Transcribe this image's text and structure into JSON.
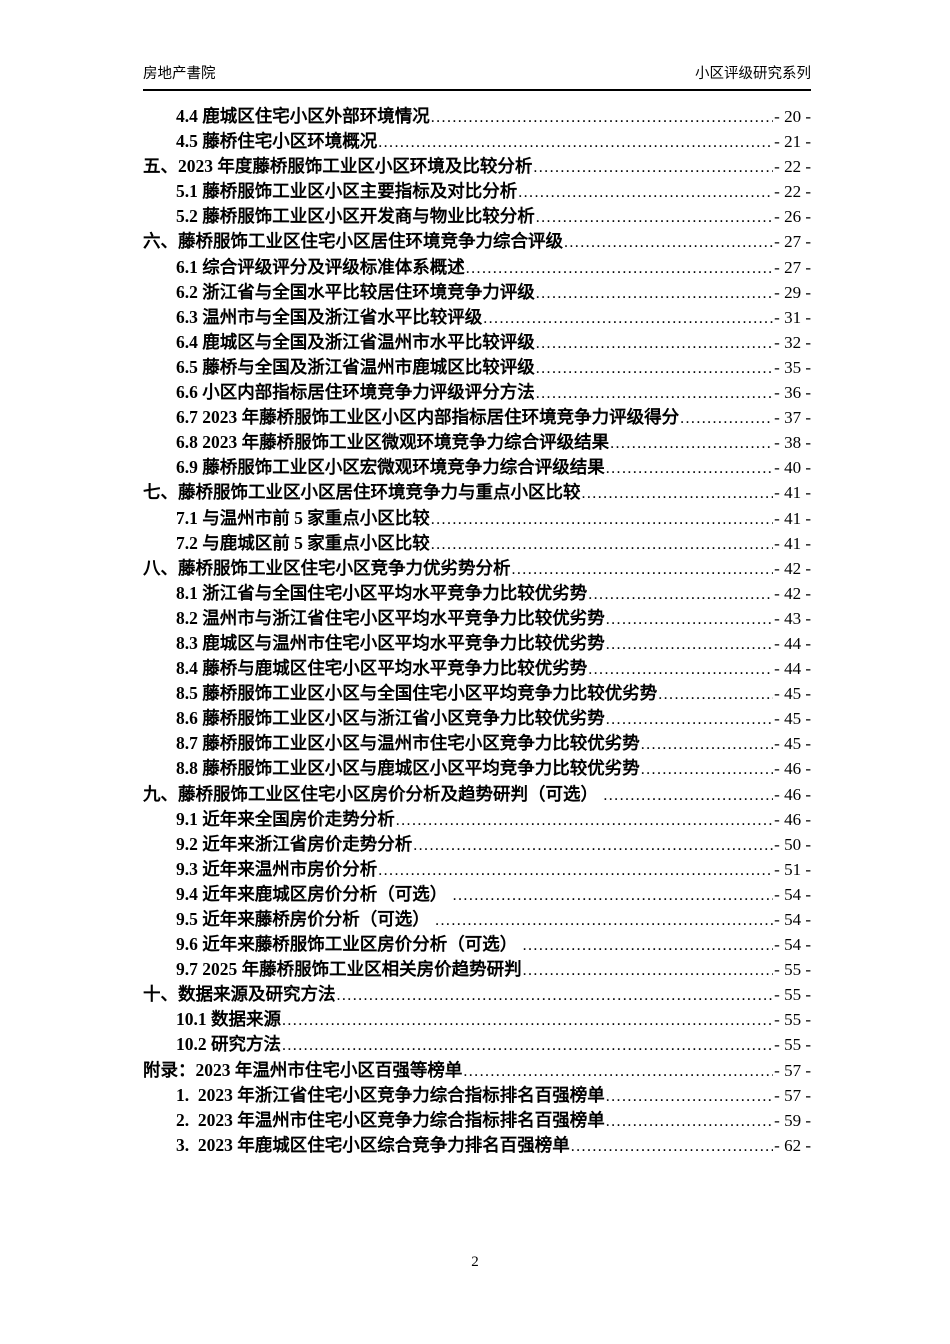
{
  "header": {
    "left": "房地产書院",
    "right": "小区评级研究系列"
  },
  "footer": {
    "page_number": "2"
  },
  "toc": {
    "entries": [
      {
        "label": "4.4 鹿城区住宅小区外部环境情况",
        "page": "- 20 -",
        "level": 1
      },
      {
        "label": "4.5 藤桥住宅小区环境概况",
        "page": "- 21 -",
        "level": 1
      },
      {
        "label": "五、2023 年度藤桥服饰工业区小区环境及比较分析",
        "page": "- 22 -",
        "level": 0
      },
      {
        "label": "5.1 藤桥服饰工业区小区主要指标及对比分析",
        "page": "- 22 -",
        "level": 1
      },
      {
        "label": "5.2 藤桥服饰工业区小区开发商与物业比较分析",
        "page": "- 26 -",
        "level": 1
      },
      {
        "label": "六、藤桥服饰工业区住宅小区居住环境竞争力综合评级",
        "page": "- 27 -",
        "level": 0
      },
      {
        "label": "6.1 综合评级评分及评级标准体系概述",
        "page": "- 27 -",
        "level": 1
      },
      {
        "label": "6.2 浙江省与全国水平比较居住环境竞争力评级",
        "page": "- 29 -",
        "level": 1
      },
      {
        "label": "6.3 温州市与全国及浙江省水平比较评级",
        "page": "- 31 -",
        "level": 1
      },
      {
        "label": "6.4 鹿城区与全国及浙江省温州市水平比较评级",
        "page": "- 32 -",
        "level": 1
      },
      {
        "label": "6.5 藤桥与全国及浙江省温州市鹿城区比较评级",
        "page": "- 35 -",
        "level": 1
      },
      {
        "label": "6.6 小区内部指标居住环境竞争力评级评分方法",
        "page": "- 36 -",
        "level": 1
      },
      {
        "label": "6.7 2023 年藤桥服饰工业区小区内部指标居住环境竞争力评级得分",
        "page": "- 37 -",
        "level": 1
      },
      {
        "label": "6.8 2023 年藤桥服饰工业区微观环境竞争力综合评级结果",
        "page": "- 38 -",
        "level": 1
      },
      {
        "label": "6.9 藤桥服饰工业区小区宏微观环境竞争力综合评级结果",
        "page": "- 40 -",
        "level": 1
      },
      {
        "label": "七、藤桥服饰工业区小区居住环境竞争力与重点小区比较",
        "page": "- 41 -",
        "level": 0
      },
      {
        "label": "7.1 与温州市前 5 家重点小区比较",
        "page": "- 41 -",
        "level": 1
      },
      {
        "label": "7.2 与鹿城区前 5 家重点小区比较",
        "page": "- 41 -",
        "level": 1
      },
      {
        "label": "八、藤桥服饰工业区住宅小区竞争力优劣势分析",
        "page": "- 42 -",
        "level": 0
      },
      {
        "label": "8.1 浙江省与全国住宅小区平均水平竞争力比较优劣势",
        "page": "- 42 -",
        "level": 1
      },
      {
        "label": "8.2 温州市与浙江省住宅小区平均水平竞争力比较优劣势",
        "page": "- 43 -",
        "level": 1
      },
      {
        "label": "8.3 鹿城区与温州市住宅小区平均水平竞争力比较优劣势",
        "page": "- 44 -",
        "level": 1
      },
      {
        "label": "8.4 藤桥与鹿城区住宅小区平均水平竞争力比较优劣势",
        "page": "- 44 -",
        "level": 1
      },
      {
        "label": "8.5 藤桥服饰工业区小区与全国住宅小区平均竞争力比较优劣势",
        "page": "- 45 -",
        "level": 1
      },
      {
        "label": "8.6 藤桥服饰工业区小区与浙江省小区竞争力比较优劣势",
        "page": "- 45 -",
        "level": 1
      },
      {
        "label": "8.7 藤桥服饰工业区小区与温州市住宅小区竞争力比较优劣势",
        "page": "- 45 -",
        "level": 1
      },
      {
        "label": "8.8 藤桥服饰工业区小区与鹿城区小区平均竞争力比较优劣势",
        "page": "- 46 -",
        "level": 1
      },
      {
        "label": "九、藤桥服饰工业区住宅小区房价分析及趋势研判（可选） ",
        "page": "- 46 -",
        "level": 0
      },
      {
        "label": "9.1 近年来全国房价走势分析",
        "page": "- 46 -",
        "level": 1
      },
      {
        "label": "9.2 近年来浙江省房价走势分析",
        "page": "- 50 -",
        "level": 1
      },
      {
        "label": "9.3 近年来温州市房价分析",
        "page": "- 51 -",
        "level": 1
      },
      {
        "label": "9.4 近年来鹿城区房价分析（可选） ",
        "page": "- 54 -",
        "level": 1
      },
      {
        "label": "9.5 近年来藤桥房价分析（可选） ",
        "page": "- 54 -",
        "level": 1
      },
      {
        "label": "9.6 近年来藤桥服饰工业区房价分析（可选） ",
        "page": "- 54 -",
        "level": 1
      },
      {
        "label": "9.7 2025 年藤桥服饰工业区相关房价趋势研判",
        "page": "- 55 -",
        "level": 1
      },
      {
        "label": "十、数据来源及研究方法",
        "page": "- 55 -",
        "level": 0
      },
      {
        "label": "10.1 数据来源",
        "page": "- 55 -",
        "level": 1
      },
      {
        "label": "10.2 研究方法",
        "page": "- 55 -",
        "level": 1
      },
      {
        "label": "附录：2023 年温州市住宅小区百强等榜单",
        "page": "- 57 -",
        "level": 0
      },
      {
        "label": "1.  2023 年浙江省住宅小区竞争力综合指标排名百强榜单",
        "page": "- 57 -",
        "level": 1
      },
      {
        "label": "2.  2023 年温州市住宅小区竞争力综合指标排名百强榜单",
        "page": "- 59 -",
        "level": 1
      },
      {
        "label": "3.  2023 年鹿城区住宅小区综合竞争力排名百强榜单",
        "page": "- 62 -",
        "level": 1
      }
    ]
  }
}
